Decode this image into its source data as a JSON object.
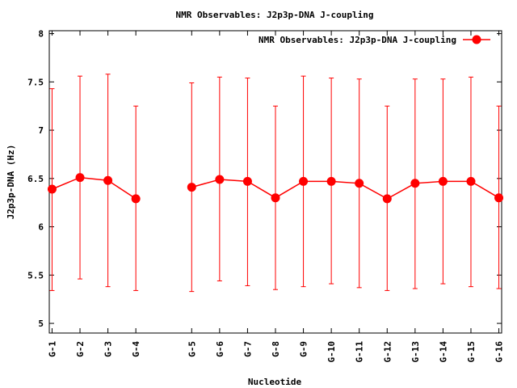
{
  "chart_data": {
    "type": "line",
    "title": "NMR Observables: J2p3p-DNA J-coupling",
    "xlabel": "Nucleotide",
    "ylabel": "J2p3p-DNA (Hz)",
    "ylim": [
      4.9,
      8.03
    ],
    "yticks": [
      5,
      5.5,
      6,
      6.5,
      7,
      7.5,
      8
    ],
    "ytick_labels": [
      "5",
      "5.5",
      "6",
      "6.5",
      "7",
      "7.5",
      "8"
    ],
    "xlim": [
      0.9,
      17.1
    ],
    "grid": false,
    "legend_position": "top-right",
    "color": "#ff0000",
    "series": [
      {
        "name": "NMR Observables: J2p3p-DNA J-coupling",
        "points": [
          {
            "x": 1,
            "label": "G-1",
            "y": 6.39,
            "ylow": 5.34,
            "yhigh": 7.43
          },
          {
            "x": 2,
            "label": "G-2",
            "y": 6.51,
            "ylow": 5.46,
            "yhigh": 7.56
          },
          {
            "x": 3,
            "label": "G-3",
            "y": 6.48,
            "ylow": 5.38,
            "yhigh": 7.58
          },
          {
            "x": 4,
            "label": "G-4",
            "y": 6.29,
            "ylow": 5.34,
            "yhigh": 7.25
          },
          {
            "x": 6,
            "label": "G-5",
            "y": 6.41,
            "ylow": 5.33,
            "yhigh": 7.49
          },
          {
            "x": 7,
            "label": "G-6",
            "y": 6.49,
            "ylow": 5.44,
            "yhigh": 7.55
          },
          {
            "x": 8,
            "label": "G-7",
            "y": 6.47,
            "ylow": 5.39,
            "yhigh": 7.54
          },
          {
            "x": 9,
            "label": "G-8",
            "y": 6.3,
            "ylow": 5.35,
            "yhigh": 7.25
          },
          {
            "x": 10,
            "label": "G-9",
            "y": 6.47,
            "ylow": 5.38,
            "yhigh": 7.56
          },
          {
            "x": 11,
            "label": "G-10",
            "y": 6.47,
            "ylow": 5.41,
            "yhigh": 7.54
          },
          {
            "x": 12,
            "label": "G-11",
            "y": 6.45,
            "ylow": 5.37,
            "yhigh": 7.53
          },
          {
            "x": 13,
            "label": "G-12",
            "y": 6.29,
            "ylow": 5.34,
            "yhigh": 7.25
          },
          {
            "x": 14,
            "label": "G-13",
            "y": 6.45,
            "ylow": 5.36,
            "yhigh": 7.53
          },
          {
            "x": 15,
            "label": "G-14",
            "y": 6.47,
            "ylow": 5.41,
            "yhigh": 7.53
          },
          {
            "x": 16,
            "label": "G-15",
            "y": 6.47,
            "ylow": 5.38,
            "yhigh": 7.55
          },
          {
            "x": 17,
            "label": "G-16",
            "y": 6.3,
            "ylow": 5.36,
            "yhigh": 7.25
          }
        ]
      }
    ]
  }
}
